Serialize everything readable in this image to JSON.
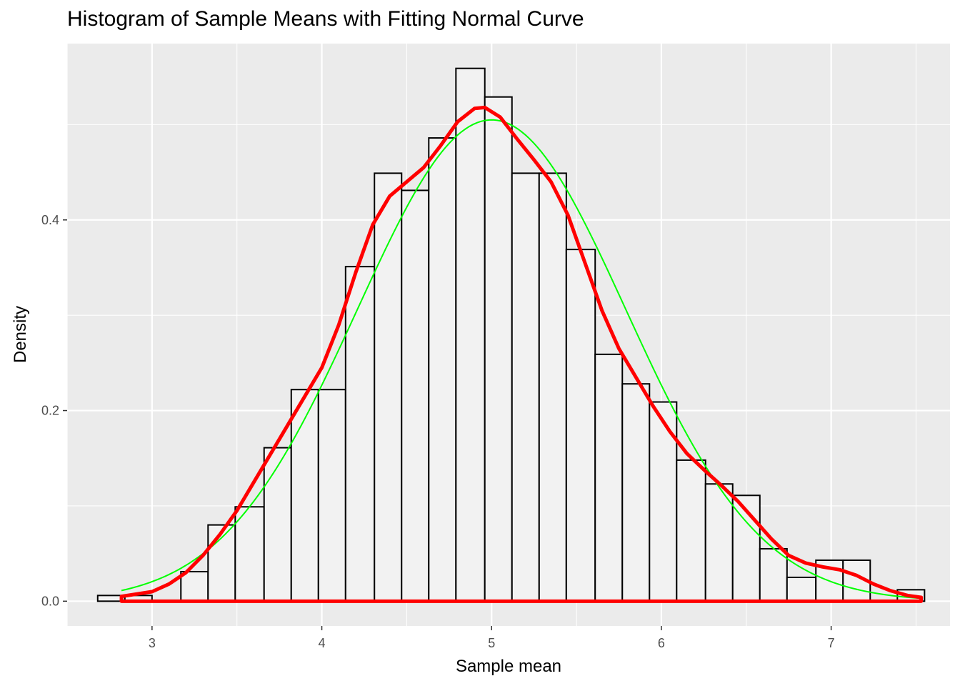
{
  "chart_data": {
    "type": "bar",
    "title": "Histogram of Sample Means with Fitting Normal Curve",
    "xlabel": "Sample mean",
    "ylabel": "Density",
    "xlim": [
      2.5,
      7.7
    ],
    "ylim": [
      -0.026,
      0.585
    ],
    "x_ticks": [
      3,
      4,
      5,
      6,
      7
    ],
    "x_tick_labels": [
      "3",
      "4",
      "5",
      "6",
      "7"
    ],
    "y_ticks": [
      0.0,
      0.2,
      0.4
    ],
    "y_tick_labels": [
      "0.0",
      "0.2",
      "0.4"
    ],
    "grid": true,
    "bin_width": 0.1625,
    "bins": [
      {
        "x0": 2.68,
        "x1": 2.84,
        "density": 0.006
      },
      {
        "x0": 2.84,
        "x1": 3.0,
        "density": 0.006
      },
      {
        "x0": 3.0,
        "x1": 3.17,
        "density": 0.0
      },
      {
        "x0": 3.17,
        "x1": 3.33,
        "density": 0.031
      },
      {
        "x0": 3.33,
        "x1": 3.49,
        "density": 0.08
      },
      {
        "x0": 3.49,
        "x1": 3.66,
        "density": 0.099
      },
      {
        "x0": 3.66,
        "x1": 3.82,
        "density": 0.161
      },
      {
        "x0": 3.82,
        "x1": 3.98,
        "density": 0.222
      },
      {
        "x0": 3.98,
        "x1": 4.14,
        "density": 0.222
      },
      {
        "x0": 4.14,
        "x1": 4.31,
        "density": 0.351
      },
      {
        "x0": 4.31,
        "x1": 4.47,
        "density": 0.449
      },
      {
        "x0": 4.47,
        "x1": 4.63,
        "density": 0.431
      },
      {
        "x0": 4.63,
        "x1": 4.79,
        "density": 0.486
      },
      {
        "x0": 4.79,
        "x1": 4.96,
        "density": 0.559
      },
      {
        "x0": 4.96,
        "x1": 5.12,
        "density": 0.529
      },
      {
        "x0": 5.12,
        "x1": 5.28,
        "density": 0.449
      },
      {
        "x0": 5.28,
        "x1": 5.44,
        "density": 0.449
      },
      {
        "x0": 5.44,
        "x1": 5.61,
        "density": 0.369
      },
      {
        "x0": 5.61,
        "x1": 5.77,
        "density": 0.259
      },
      {
        "x0": 5.77,
        "x1": 5.93,
        "density": 0.228
      },
      {
        "x0": 5.93,
        "x1": 6.09,
        "density": 0.209
      },
      {
        "x0": 6.09,
        "x1": 6.26,
        "density": 0.148
      },
      {
        "x0": 6.26,
        "x1": 6.42,
        "density": 0.123
      },
      {
        "x0": 6.42,
        "x1": 6.58,
        "density": 0.111
      },
      {
        "x0": 6.58,
        "x1": 6.74,
        "density": 0.055
      },
      {
        "x0": 6.74,
        "x1": 6.91,
        "density": 0.025
      },
      {
        "x0": 6.91,
        "x1": 7.07,
        "density": 0.043
      },
      {
        "x0": 7.07,
        "x1": 7.23,
        "density": 0.043
      },
      {
        "x0": 7.23,
        "x1": 7.39,
        "density": 0.0
      },
      {
        "x0": 7.39,
        "x1": 7.55,
        "density": 0.012
      }
    ],
    "series": [
      {
        "type": "line",
        "kind": "normal curve",
        "color": "#00ff00",
        "mean": 5.0,
        "sd": 0.79,
        "x_range": [
          2.82,
          7.53
        ]
      },
      {
        "type": "line",
        "kind": "density",
        "color": "#ff0000",
        "points": [
          [
            2.82,
            0.005
          ],
          [
            3.0,
            0.01
          ],
          [
            3.1,
            0.018
          ],
          [
            3.2,
            0.03
          ],
          [
            3.3,
            0.048
          ],
          [
            3.4,
            0.07
          ],
          [
            3.5,
            0.095
          ],
          [
            3.6,
            0.125
          ],
          [
            3.7,
            0.155
          ],
          [
            3.8,
            0.185
          ],
          [
            3.9,
            0.215
          ],
          [
            4.0,
            0.245
          ],
          [
            4.1,
            0.29
          ],
          [
            4.2,
            0.345
          ],
          [
            4.3,
            0.395
          ],
          [
            4.4,
            0.425
          ],
          [
            4.5,
            0.44
          ],
          [
            4.6,
            0.455
          ],
          [
            4.7,
            0.478
          ],
          [
            4.8,
            0.503
          ],
          [
            4.9,
            0.517
          ],
          [
            4.96,
            0.518
          ],
          [
            5.05,
            0.508
          ],
          [
            5.15,
            0.485
          ],
          [
            5.25,
            0.463
          ],
          [
            5.35,
            0.44
          ],
          [
            5.45,
            0.405
          ],
          [
            5.55,
            0.355
          ],
          [
            5.65,
            0.305
          ],
          [
            5.75,
            0.265
          ],
          [
            5.85,
            0.235
          ],
          [
            5.95,
            0.205
          ],
          [
            6.05,
            0.178
          ],
          [
            6.15,
            0.155
          ],
          [
            6.25,
            0.138
          ],
          [
            6.35,
            0.122
          ],
          [
            6.45,
            0.105
          ],
          [
            6.55,
            0.085
          ],
          [
            6.65,
            0.065
          ],
          [
            6.75,
            0.048
          ],
          [
            6.85,
            0.04
          ],
          [
            6.95,
            0.036
          ],
          [
            7.05,
            0.033
          ],
          [
            7.15,
            0.027
          ],
          [
            7.25,
            0.018
          ],
          [
            7.35,
            0.011
          ],
          [
            7.45,
            0.006
          ],
          [
            7.53,
            0.004
          ]
        ]
      }
    ]
  }
}
